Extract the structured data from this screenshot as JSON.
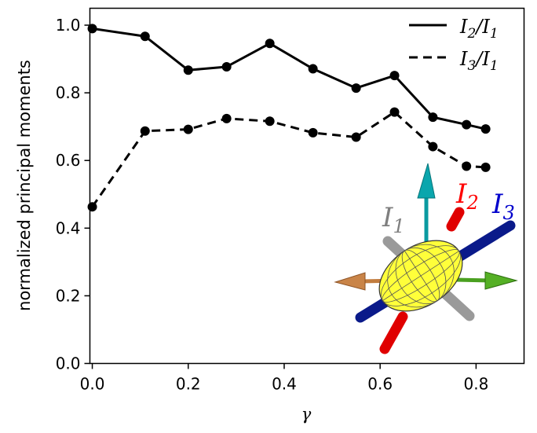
{
  "chart_data": {
    "type": "line",
    "title": "",
    "xlabel": "γ",
    "ylabel": "normalized principal moments",
    "xlim": [
      -0.005,
      0.9
    ],
    "ylim": [
      0.0,
      1.05
    ],
    "xticks": [
      "0.0",
      "0.2",
      "0.4",
      "0.6",
      "0.8"
    ],
    "yticks": [
      "0.0",
      "0.2",
      "0.4",
      "0.6",
      "0.8",
      "1.0"
    ],
    "grid": false,
    "legend_position": "top-right",
    "series": [
      {
        "name": "I2/I1",
        "line_style": "solid",
        "color": "#000000",
        "x": [
          0.0,
          0.11,
          0.2,
          0.28,
          0.37,
          0.46,
          0.55,
          0.63,
          0.71,
          0.78,
          0.82
        ],
        "y": [
          0.99,
          0.967,
          0.867,
          0.877,
          0.946,
          0.871,
          0.814,
          0.851,
          0.728,
          0.706,
          0.693
        ]
      },
      {
        "name": "I3/I1",
        "line_style": "dashed",
        "color": "#000000",
        "x": [
          0.0,
          0.11,
          0.2,
          0.28,
          0.37,
          0.46,
          0.55,
          0.63,
          0.71,
          0.78,
          0.82
        ],
        "y": [
          0.463,
          0.687,
          0.692,
          0.724,
          0.716,
          0.682,
          0.669,
          0.743,
          0.641,
          0.583,
          0.58
        ]
      }
    ],
    "legend": [
      {
        "base": "I",
        "sub1": "2",
        "slash": "/",
        "base2": "I",
        "sub2": "1"
      },
      {
        "base": "I",
        "sub1": "3",
        "slash": "/",
        "base2": "I",
        "sub2": "1"
      }
    ]
  },
  "inset": {
    "labels": [
      {
        "base": "I",
        "sub": "1",
        "color": "#7f7f7f"
      },
      {
        "base": "I",
        "sub": "2",
        "color": "#ff0000"
      },
      {
        "base": "I",
        "sub": "3",
        "color": "#0000cc"
      }
    ],
    "ellipsoid_color": "#ffff33",
    "arrow_colors": [
      "#00a0a8",
      "#c07838",
      "#4aa020"
    ]
  }
}
